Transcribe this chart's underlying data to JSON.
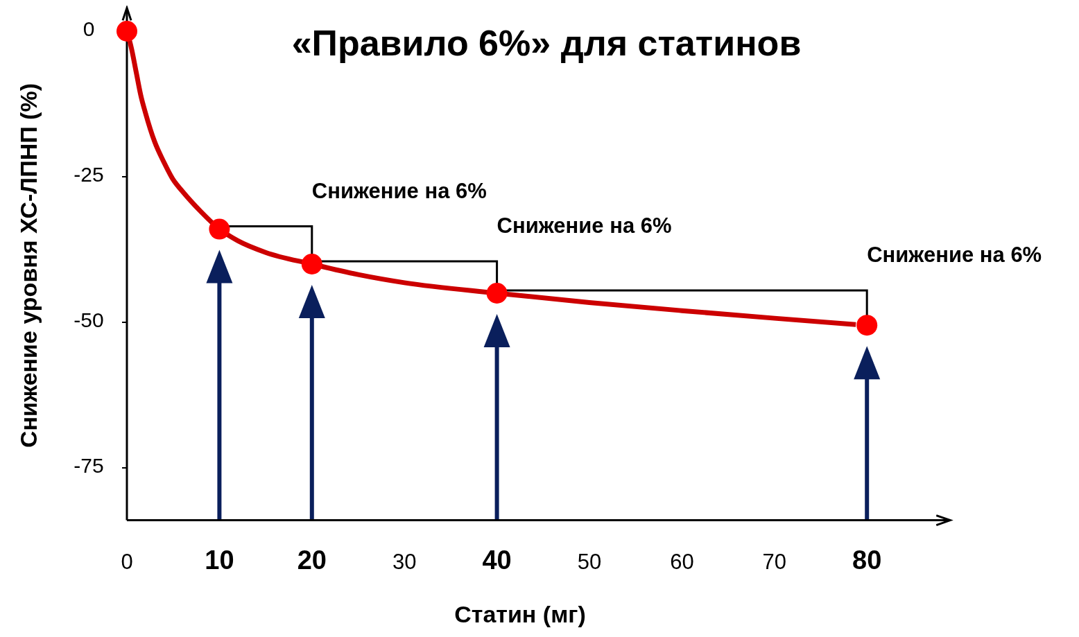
{
  "chart_data": {
    "type": "line",
    "title": "«Правило 6%» для статинов",
    "xlabel": "Статин (мг)",
    "ylabel": "Снижение уровня ХС-ЛПНП (%)",
    "xlim": [
      0,
      89
    ],
    "ylim": [
      -84,
      4
    ],
    "xticks": [
      0,
      10,
      20,
      30,
      40,
      50,
      60,
      70,
      80
    ],
    "yticks": [
      0,
      -25,
      -50,
      -75
    ],
    "grid": false,
    "series": [
      {
        "color": "#cc0000",
        "line_style": "solid",
        "x": [
          0,
          0.5,
          1,
          1.5,
          2,
          3,
          4,
          5,
          6,
          8,
          10,
          12,
          15,
          20,
          25,
          30,
          40,
          50,
          60,
          70,
          78.8
        ],
        "values": [
          0,
          -3,
          -7,
          -11,
          -14,
          -19,
          -22.5,
          -25.5,
          -27.5,
          -31,
          -34,
          -36,
          -38,
          -40,
          -41.8,
          -43.2,
          -45,
          -46.6,
          -48,
          -49.3,
          -50.4
        ]
      },
      {
        "type": "scatter",
        "color": "#ff0000",
        "marker": "circle",
        "x": [
          0,
          10,
          20,
          40,
          80
        ],
        "values": [
          0,
          -34,
          -40,
          -45,
          -50.5
        ]
      }
    ],
    "annotations": [
      "Снижение на 6%",
      "Снижение на 6%",
      "Снижение на 6%"
    ]
  }
}
